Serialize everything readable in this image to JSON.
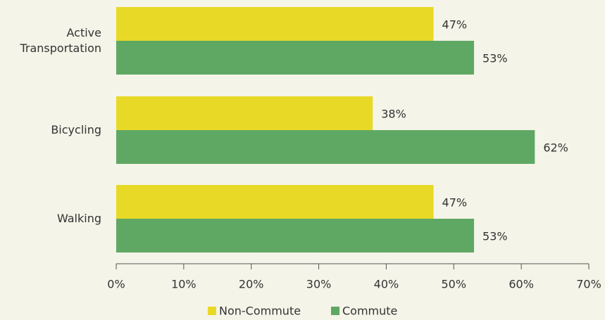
{
  "chart_data": {
    "type": "hbar",
    "categories": [
      "Active Transportation",
      "Bicycling",
      "Walking"
    ],
    "series": [
      {
        "name": "Non-Commute",
        "color": "#e8d926",
        "values": [
          47,
          38,
          47
        ],
        "value_labels": [
          "47%",
          "38%",
          "47%"
        ]
      },
      {
        "name": "Commute",
        "color": "#5fa864",
        "values": [
          53,
          62,
          53
        ],
        "value_labels": [
          "53%",
          "62%",
          "53%"
        ]
      }
    ],
    "xlim": [
      0,
      70
    ],
    "xticks": [
      {
        "value": 0,
        "label": "0%"
      },
      {
        "value": 10,
        "label": "10%"
      },
      {
        "value": 20,
        "label": "20%"
      },
      {
        "value": 30,
        "label": "30%"
      },
      {
        "value": 40,
        "label": "40%"
      },
      {
        "value": 50,
        "label": "50%"
      },
      {
        "value": 60,
        "label": "60%"
      },
      {
        "value": 70,
        "label": "70%"
      }
    ],
    "legend": "bottom"
  }
}
